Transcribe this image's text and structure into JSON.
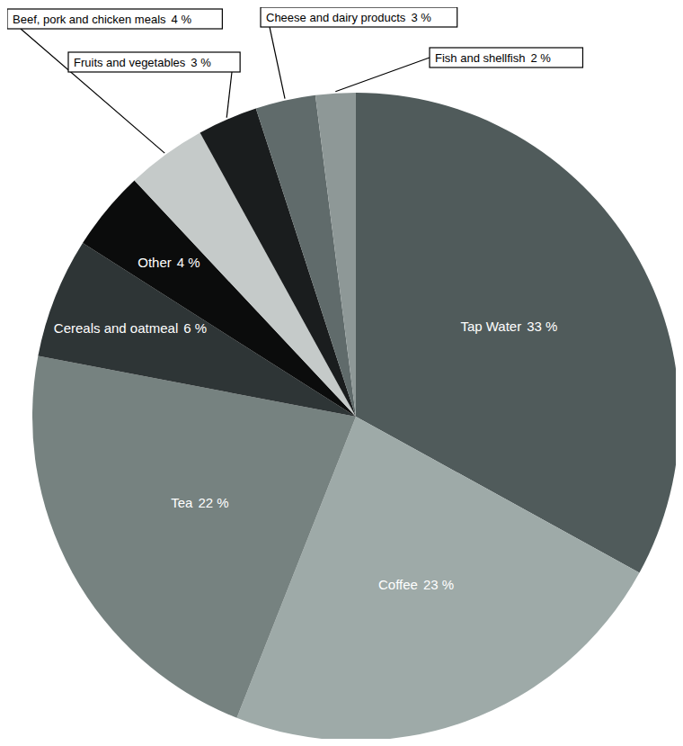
{
  "chart_data": {
    "type": "pie",
    "categories": [
      "Tap Water",
      "Coffee",
      "Tea",
      "Cereals and oatmeal",
      "Other",
      "Beef, pork and chicken meals",
      "Fruits and vegetables",
      "Cheese and dairy products",
      "Fish and shellfish"
    ],
    "values": [
      33,
      23,
      22,
      6,
      4,
      4,
      3,
      3,
      2
    ],
    "value_labels": [
      "33 %",
      "23 %",
      "22 %",
      "6 %",
      "4 %",
      "4 %",
      "3 %",
      "3 %",
      "2 %"
    ],
    "colors": [
      "#505b5b",
      "#9eaaa8",
      "#768280",
      "#2e3536",
      "#0b0c0c",
      "#c5cac9",
      "#1a1d1e",
      "#606b6b",
      "#8e9897"
    ],
    "data_labels": true
  }
}
